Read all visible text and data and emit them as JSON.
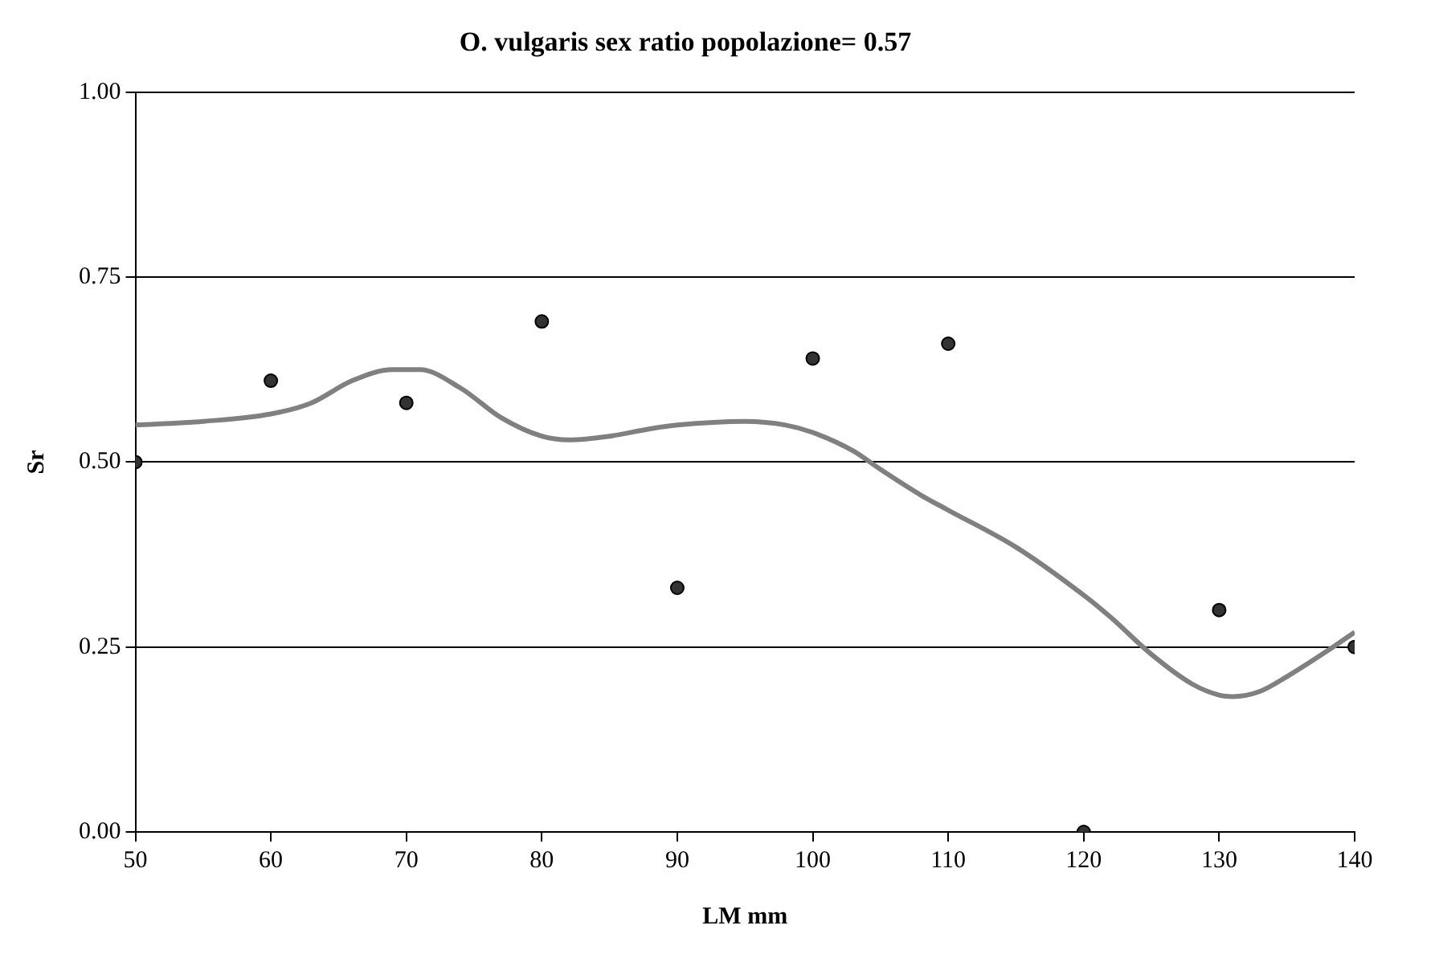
{
  "chart_data": {
    "type": "scatter",
    "title": "O. vulgaris sex ratio popolazione= 0.57",
    "xlabel": "LM mm",
    "ylabel": "Sr",
    "xlim": [
      50,
      140
    ],
    "xticks": [
      50,
      60,
      70,
      80,
      90,
      100,
      110,
      120,
      130,
      140
    ],
    "ylim": [
      0,
      1
    ],
    "yticks": [
      {
        "value": 0,
        "label": "0.00"
      },
      {
        "value": 0.25,
        "label": "0.25"
      },
      {
        "value": 0.5,
        "label": "0.50"
      },
      {
        "value": 0.75,
        "label": "0.75"
      },
      {
        "value": 1,
        "label": "1.00"
      }
    ],
    "grid": "y",
    "legend": false,
    "marker": "circle",
    "series": [
      {
        "type": "scatter",
        "color": "#333333",
        "x": [
          50,
          60,
          70,
          80,
          90,
          100,
          110,
          120,
          130,
          140
        ],
        "values": [
          0.5,
          0.61,
          0.58,
          0.69,
          0.33,
          0.64,
          0.66,
          0.0,
          0.3,
          0.25
        ]
      },
      {
        "type": "line",
        "color": "#808080",
        "marker": "none",
        "x": [
          50,
          55,
          60,
          63,
          66,
          69,
          71,
          74,
          77,
          80,
          82,
          85,
          88,
          90,
          95,
          98,
          100,
          103,
          105,
          108,
          110,
          115,
          120,
          122,
          125,
          128,
          130,
          131,
          133,
          135,
          138,
          140
        ],
        "values": [
          0.55,
          0.555,
          0.565,
          0.58,
          0.61,
          0.625,
          0.625,
          0.6,
          0.56,
          0.535,
          0.53,
          0.535,
          0.545,
          0.55,
          0.555,
          0.55,
          0.54,
          0.515,
          0.49,
          0.455,
          0.435,
          0.385,
          0.32,
          0.29,
          0.24,
          0.2,
          0.185,
          0.183,
          0.19,
          0.21,
          0.245,
          0.27
        ]
      }
    ]
  }
}
